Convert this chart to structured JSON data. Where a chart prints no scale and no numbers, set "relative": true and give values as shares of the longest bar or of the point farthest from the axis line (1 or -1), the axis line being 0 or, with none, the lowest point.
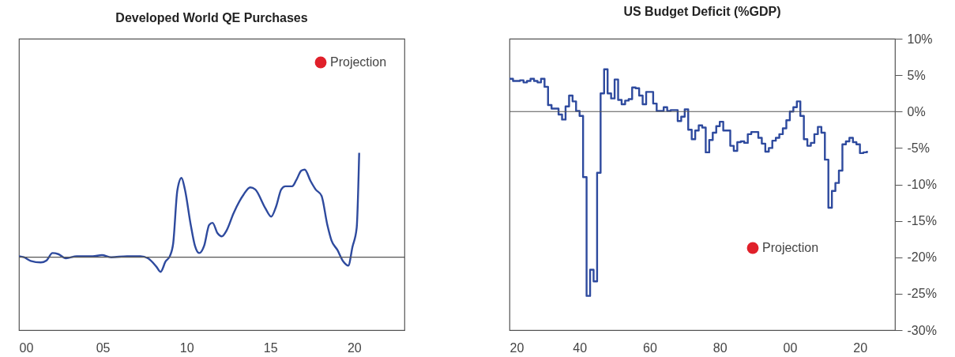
{
  "chart_data": [
    {
      "type": "line",
      "title": "Developed World QE Purchases",
      "relative": true,
      "xlim": [
        2000,
        2023
      ],
      "xticks": [
        {
          "value": 2000,
          "label": "00"
        },
        {
          "value": 2005,
          "label": "05"
        },
        {
          "value": 2010,
          "label": "10"
        },
        {
          "value": 2015,
          "label": "15"
        },
        {
          "value": 2020,
          "label": "20"
        }
      ],
      "tick_labels": "x",
      "legend": "top right",
      "ref_lines": [
        {
          "axis": "y",
          "value": 0
        }
      ],
      "series": [
        {
          "color": "#2e4a9e",
          "x": [
            2000.0,
            2000.3,
            2000.7,
            2001.3,
            2001.65,
            2002.0,
            2002.35,
            2002.8,
            2003.45,
            2004.4,
            2004.95,
            2005.5,
            2006.45,
            2007.25,
            2007.7,
            2008.2,
            2008.45,
            2008.75,
            2009.0,
            2009.2,
            2009.45,
            2009.7,
            2009.9,
            2010.25,
            2010.5,
            2010.75,
            2011.05,
            2011.35,
            2011.55,
            2011.85,
            2012.1,
            2012.4,
            2012.8,
            2013.4,
            2013.8,
            2014.1,
            2014.7,
            2015.05,
            2015.35,
            2015.65,
            2015.9,
            2016.3,
            2016.55,
            2016.85,
            2017.05,
            2017.4,
            2017.7,
            2018.05,
            2018.4,
            2018.65,
            2019.0,
            2019.35,
            2019.65,
            2019.9,
            2020.15,
            2020.3
          ],
          "values": [
            0.01,
            0.0,
            -0.035,
            -0.05,
            -0.03,
            0.04,
            0.03,
            -0.01,
            0.01,
            0.01,
            0.02,
            0.0,
            0.01,
            0.01,
            -0.01,
            -0.09,
            -0.14,
            -0.04,
            0.01,
            0.13,
            0.64,
            0.76,
            0.65,
            0.31,
            0.11,
            0.04,
            0.11,
            0.31,
            0.33,
            0.23,
            0.2,
            0.26,
            0.42,
            0.6,
            0.67,
            0.65,
            0.47,
            0.39,
            0.49,
            0.65,
            0.68,
            0.68,
            0.74,
            0.83,
            0.84,
            0.73,
            0.65,
            0.59,
            0.31,
            0.16,
            0.07,
            -0.04,
            -0.08,
            0.1,
            0.28,
            1.0
          ]
        },
        {
          "name": "Projection",
          "color": "#e0202a"
        }
      ]
    },
    {
      "type": "step",
      "title": "US Budget Deficit (%GDP)",
      "xlim": [
        1920,
        2030
      ],
      "xticks": [
        {
          "value": 1920,
          "label": "20"
        },
        {
          "value": 1940,
          "label": "40"
        },
        {
          "value": 1960,
          "label": "60"
        },
        {
          "value": 1980,
          "label": "80"
        },
        {
          "value": 2000,
          "label": "00"
        },
        {
          "value": 2020,
          "label": "20"
        }
      ],
      "ylim": [
        -30,
        10
      ],
      "yticks": [
        {
          "value": 10,
          "label": "10%"
        },
        {
          "value": 5,
          "label": "5%"
        },
        {
          "value": 0,
          "label": "0%"
        },
        {
          "value": -5,
          "label": "-5%"
        },
        {
          "value": -10,
          "label": "-10%"
        },
        {
          "value": -15,
          "label": "-15%"
        },
        {
          "value": -20,
          "label": "-20%"
        },
        {
          "value": -25,
          "label": "-25%"
        },
        {
          "value": -30,
          "label": "-30%"
        }
      ],
      "legend": "bottom right",
      "ref_lines": [
        {
          "axis": "y",
          "value": 0
        }
      ],
      "series": [
        {
          "color": "#2e4a9e",
          "x": [
            1920,
            1921,
            1922,
            1923,
            1924,
            1925,
            1926,
            1927,
            1928,
            1929,
            1930,
            1931,
            1932,
            1933,
            1934,
            1935,
            1936,
            1937,
            1938,
            1939,
            1940,
            1941,
            1942,
            1943,
            1944,
            1945,
            1946,
            1947,
            1948,
            1949,
            1950,
            1951,
            1952,
            1953,
            1954,
            1955,
            1956,
            1957,
            1958,
            1959,
            1960,
            1961,
            1962,
            1963,
            1964,
            1965,
            1966,
            1967,
            1968,
            1969,
            1970,
            1971,
            1972,
            1973,
            1974,
            1975,
            1976,
            1977,
            1978,
            1979,
            1980,
            1981,
            1982,
            1983,
            1984,
            1985,
            1986,
            1987,
            1988,
            1989,
            1990,
            1991,
            1992,
            1993,
            1994,
            1995,
            1996,
            1997,
            1998,
            1999,
            2000,
            2001,
            2002,
            2003,
            2004,
            2005,
            2006,
            2007,
            2008,
            2009,
            2010,
            2011,
            2012,
            2013,
            2014,
            2015,
            2016,
            2017,
            2018,
            2019,
            2020,
            2021,
            2022
          ],
          "values": [
            4.5,
            4.2,
            4.2,
            4.3,
            4.0,
            4.2,
            4.5,
            4.2,
            4.0,
            4.5,
            3.4,
            0.9,
            0.4,
            0.4,
            -0.4,
            -1.1,
            0.7,
            2.2,
            1.4,
            0.1,
            -0.6,
            -9.0,
            -25.3,
            -21.7,
            -23.3,
            -8.4,
            2.5,
            5.8,
            2.5,
            1.8,
            4.4,
            1.6,
            1.0,
            1.5,
            1.7,
            3.3,
            3.2,
            2.2,
            1.0,
            2.7,
            2.7,
            1.1,
            0.1,
            0.1,
            0.6,
            0.1,
            0.2,
            0.2,
            -1.3,
            -0.7,
            0.3,
            -2.5,
            -3.8,
            -2.6,
            -1.9,
            -2.2,
            -5.6,
            -3.9,
            -2.9,
            -2.0,
            -1.4,
            -2.6,
            -2.6,
            -4.7,
            -5.4,
            -4.2,
            -4.1,
            -4.3,
            -3.1,
            -2.8,
            -2.8,
            -3.6,
            -4.4,
            -5.5,
            -5.0,
            -4.0,
            -3.6,
            -3.1,
            -2.3,
            -1.2,
            0.0,
            0.6,
            1.4,
            -0.6,
            -3.8,
            -4.7,
            -4.3,
            -3.1,
            -2.1,
            -2.9,
            -6.6,
            -13.2,
            -10.9,
            -9.8,
            -8.1,
            -4.5,
            -4.1,
            -3.6,
            -4.2,
            -4.5,
            -5.7,
            -5.6,
            -5.4
          ]
        },
        {
          "name": "Projection",
          "color": "#e0202a"
        }
      ]
    }
  ]
}
